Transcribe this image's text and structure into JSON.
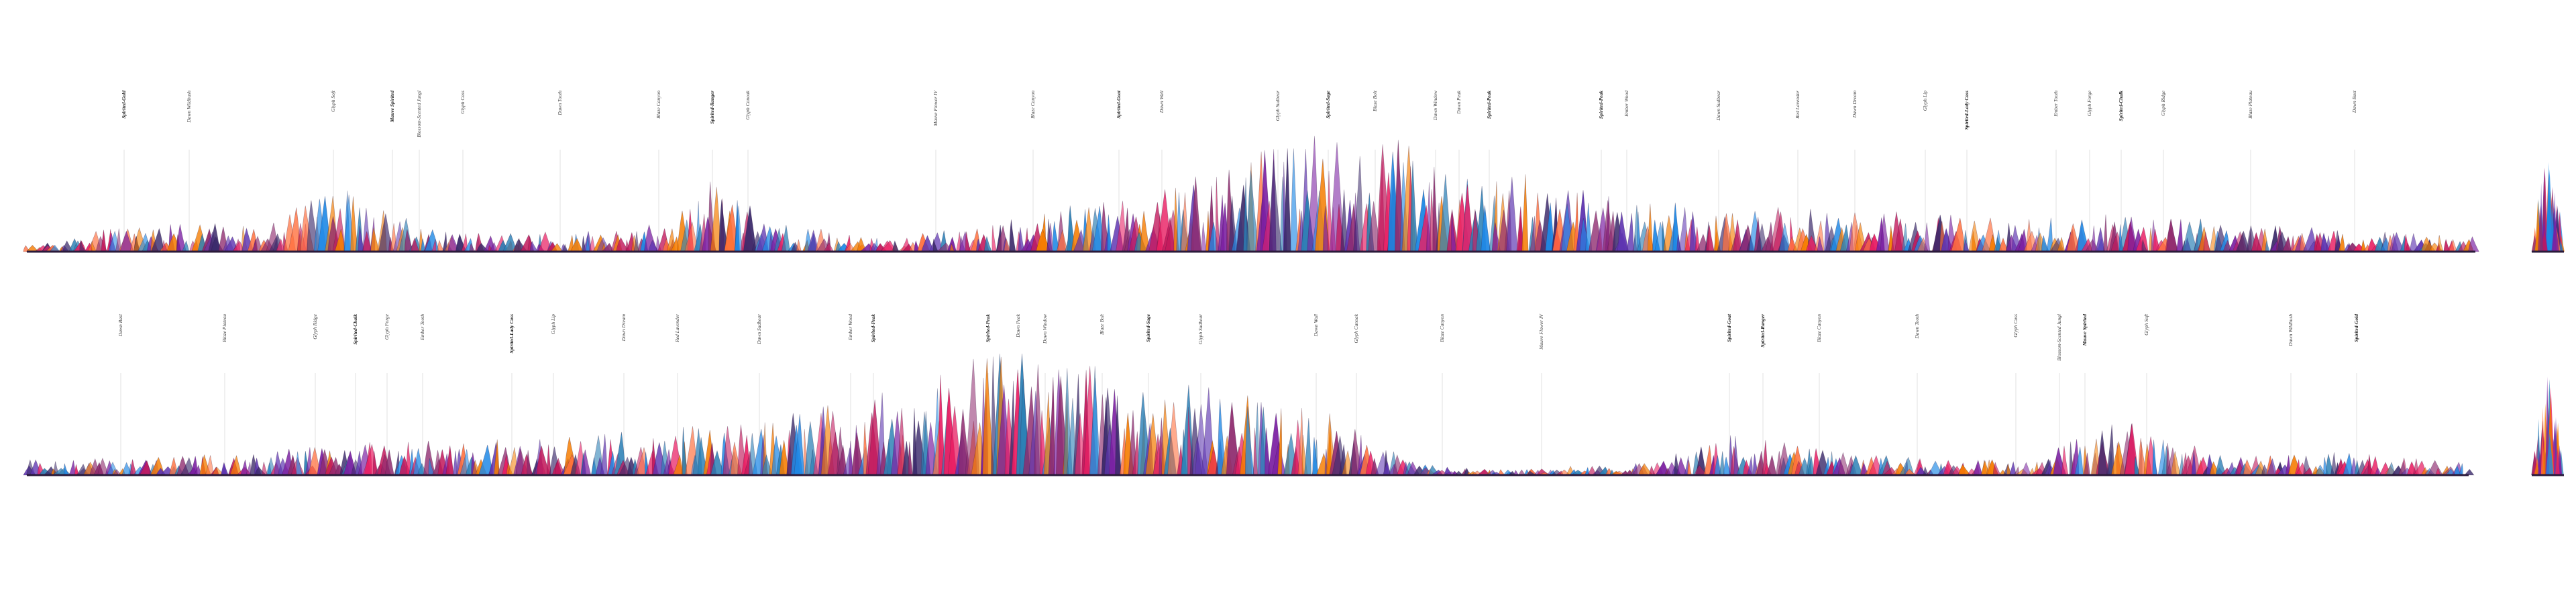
{
  "palette": {
    "background": "#ffffff",
    "label": "#3c3c3c",
    "colors": [
      "#c2185b",
      "#e91e63",
      "#7b1fa2",
      "#5e35b1",
      "#1e88e5",
      "#2a7fb5",
      "#f57c00",
      "#ff6f3c",
      "#8e2a6e",
      "#3b2a6b"
    ]
  },
  "rows": [
    {
      "name": "row-top",
      "labels": [
        {
          "text": "Spirited-Gold",
          "bold": true
        },
        {
          "text": "Dawn Wildbush",
          "bold": false
        },
        {
          "text": "Glyph Soft",
          "bold": false
        },
        {
          "text": "Mauve Spirited",
          "bold": true
        },
        {
          "text": "Blossom-Scented Jungl",
          "bold": false
        },
        {
          "text": "Glyph Cass",
          "bold": false
        },
        {
          "text": "Dawn Tooth",
          "bold": false
        },
        {
          "text": "Blaze Canyon",
          "bold": false
        },
        {
          "text": "Spirited-Ranger",
          "bold": true
        },
        {
          "text": "Glyph Canoak",
          "bold": false
        },
        {
          "text": "Mauve Flower IV",
          "bold": false
        },
        {
          "text": "Blaze Canyon",
          "bold": false
        },
        {
          "text": "Spirited-Goat",
          "bold": true
        },
        {
          "text": "Dawn Wall",
          "bold": false
        },
        {
          "text": "Glyph Sudbear",
          "bold": false
        },
        {
          "text": "Spirited-Sage",
          "bold": true
        },
        {
          "text": "Blaze Bolt",
          "bold": false
        },
        {
          "text": "Dawn Window",
          "bold": false
        },
        {
          "text": "Dawn Peak",
          "bold": false
        },
        {
          "text": "Spirited-Peak",
          "bold": true
        },
        {
          "text": "Spirited-Peak",
          "bold": true
        },
        {
          "text": "Ember Wood",
          "bold": false
        },
        {
          "text": "Dawn Sudbear",
          "bold": false
        },
        {
          "text": "Red Lavender",
          "bold": false
        },
        {
          "text": "Dawn Dream",
          "bold": false
        },
        {
          "text": "Glyph Lip",
          "bold": false
        },
        {
          "text": "Spirited-Lady Cass",
          "bold": true
        },
        {
          "text": "Ember Tooth",
          "bold": false
        },
        {
          "text": "Glyph Forge",
          "bold": false
        },
        {
          "text": "Spirited-Chalk",
          "bold": true
        },
        {
          "text": "Glyph Ridge",
          "bold": false
        },
        {
          "text": "Blaze Plateau",
          "bold": false
        },
        {
          "text": "Dawn Bast",
          "bold": false
        }
      ]
    },
    {
      "name": "row-bottom",
      "labels": [
        {
          "text": "Dawn Bast",
          "bold": false
        },
        {
          "text": "Blaze Plateau",
          "bold": false
        },
        {
          "text": "Glyph Ridge",
          "bold": false
        },
        {
          "text": "Spirited-Chalk",
          "bold": true
        },
        {
          "text": "Glyph Forge",
          "bold": false
        },
        {
          "text": "Ember Tooth",
          "bold": false
        },
        {
          "text": "Spirited-Lady Cass",
          "bold": true
        },
        {
          "text": "Glyph Lip",
          "bold": false
        },
        {
          "text": "Dawn Dream",
          "bold": false
        },
        {
          "text": "Red Lavender",
          "bold": false
        },
        {
          "text": "Dawn Sudbear",
          "bold": false
        },
        {
          "text": "Ember Wood",
          "bold": false
        },
        {
          "text": "Spirited-Peak",
          "bold": true
        },
        {
          "text": "Spirited-Peak",
          "bold": true
        },
        {
          "text": "Dawn Peak",
          "bold": false
        },
        {
          "text": "Dawn Window",
          "bold": false
        },
        {
          "text": "Blaze Bolt",
          "bold": false
        },
        {
          "text": "Spirited-Sage",
          "bold": true
        },
        {
          "text": "Glyph Sudbear",
          "bold": false
        },
        {
          "text": "Dawn Wall",
          "bold": false
        },
        {
          "text": "Glyph Canoak",
          "bold": false
        },
        {
          "text": "Blaze Canyon",
          "bold": false
        },
        {
          "text": "Mauve Flower IV",
          "bold": false
        },
        {
          "text": "Spirited-Goat",
          "bold": true
        },
        {
          "text": "Spirited-Ranger",
          "bold": true
        },
        {
          "text": "Blaze Canyon",
          "bold": false
        },
        {
          "text": "Dawn Tooth",
          "bold": false
        },
        {
          "text": "Glyph Cass",
          "bold": false
        },
        {
          "text": "Blossom-Scented Jungl",
          "bold": false
        },
        {
          "text": "Mauve Spirited",
          "bold": true
        },
        {
          "text": "Glyph Soft",
          "bold": false
        },
        {
          "text": "Dawn Wildbush",
          "bold": false
        },
        {
          "text": "Spirited-Gold",
          "bold": true
        }
      ]
    }
  ]
}
